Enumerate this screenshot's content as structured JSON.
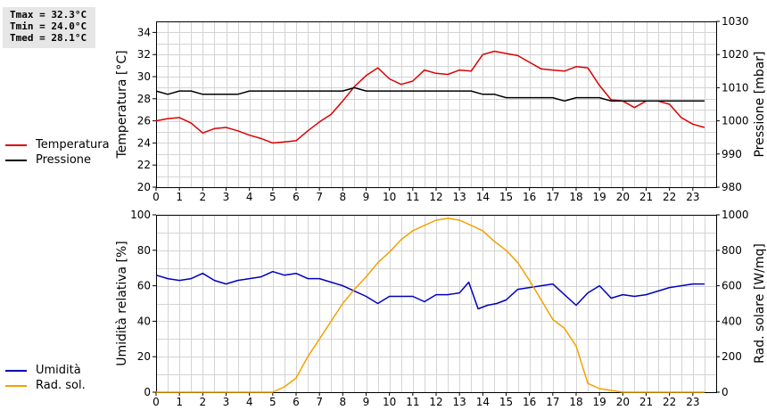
{
  "stats": [
    "Tmax = 32.3°C",
    "Tmin = 24.0°C",
    "Tmed = 28.1°C"
  ],
  "colors": {
    "temperatura": "#dd0000",
    "pressione": "#000000",
    "umidita": "#0000bb",
    "rad_sol": "#f5a000",
    "grid": "#d4d4d4"
  },
  "legend_top": [
    {
      "label": "Temperatura",
      "color": "#dd0000"
    },
    {
      "label": "Pressione",
      "color": "#000000"
    }
  ],
  "legend_bottom": [
    {
      "label": "Umidità",
      "color": "#0000bb"
    },
    {
      "label": "Rad. sol.",
      "color": "#f5a000"
    }
  ],
  "chart_data": [
    {
      "type": "line",
      "xlabel": "",
      "ylabel": "Temperatura [°C]",
      "y2label": "Pressione [mbar]",
      "xlim": [
        0,
        24
      ],
      "ylim": [
        20,
        35
      ],
      "y2lim": [
        980,
        1030
      ],
      "xticks": [
        "0",
        "1",
        "2",
        "3",
        "4",
        "5",
        "6",
        "7",
        "8",
        "9",
        "10",
        "11",
        "12",
        "13",
        "14",
        "15",
        "16",
        "17",
        "18",
        "19",
        "20",
        "21",
        "22",
        "23"
      ],
      "yticks": [
        "20",
        "22",
        "24",
        "26",
        "28",
        "30",
        "32",
        "34"
      ],
      "y2ticks": [
        "980",
        "990",
        "1000",
        "1010",
        "1020",
        "1030"
      ],
      "grid": true,
      "series": [
        {
          "name": "Temperatura",
          "axis": "left",
          "x": [
            0,
            0.5,
            1,
            1.5,
            2,
            2.5,
            3,
            3.5,
            4,
            4.5,
            5,
            5.5,
            6,
            6.5,
            7,
            7.5,
            8,
            8.5,
            9,
            9.5,
            10,
            10.5,
            11,
            11.5,
            12,
            12.5,
            13,
            13.5,
            14,
            14.5,
            15,
            15.5,
            16,
            16.5,
            17,
            17.5,
            18,
            18.5,
            19,
            19.5,
            20,
            20.5,
            21,
            21.5,
            22,
            22.5,
            23,
            23.5
          ],
          "y": [
            26.0,
            26.2,
            26.3,
            25.8,
            24.9,
            25.3,
            25.4,
            25.1,
            24.7,
            24.4,
            24.0,
            24.1,
            24.2,
            25.1,
            25.9,
            26.6,
            27.8,
            29.1,
            30.1,
            30.8,
            29.8,
            29.3,
            29.6,
            30.6,
            30.3,
            30.2,
            30.6,
            30.5,
            32.0,
            32.3,
            32.1,
            31.9,
            31.3,
            30.7,
            30.6,
            30.5,
            30.9,
            30.8,
            29.2,
            27.9,
            27.8,
            27.2,
            27.8,
            27.8,
            27.5,
            26.3,
            25.7,
            25.4
          ]
        },
        {
          "name": "Pressione",
          "axis": "right",
          "x": [
            0,
            0.5,
            1,
            1.5,
            2,
            2.5,
            3,
            3.5,
            4,
            4.5,
            5,
            5.5,
            6,
            6.5,
            7,
            7.5,
            8,
            8.5,
            9,
            9.5,
            10,
            10.5,
            11,
            11.5,
            12,
            12.5,
            13,
            13.5,
            14,
            14.5,
            15,
            15.5,
            16,
            16.5,
            17,
            17.5,
            18,
            18.5,
            19,
            19.5,
            20,
            20.5,
            21,
            21.5,
            22,
            22.5,
            23,
            23.5
          ],
          "y": [
            1009,
            1008,
            1009,
            1009,
            1008,
            1008,
            1008,
            1008,
            1009,
            1009,
            1009,
            1009,
            1009,
            1009,
            1009,
            1009,
            1009,
            1010,
            1009,
            1009,
            1009,
            1009,
            1009,
            1009,
            1009,
            1009,
            1009,
            1009,
            1008,
            1008,
            1007,
            1007,
            1007,
            1007,
            1007,
            1006,
            1007,
            1007,
            1007,
            1006,
            1006,
            1006,
            1006,
            1006,
            1006,
            1006,
            1006,
            1006
          ]
        }
      ]
    },
    {
      "type": "line",
      "xlabel": "",
      "ylabel": "Umidità relativa [%]",
      "y2label": "Rad. solare [W/mq]",
      "xlim": [
        0,
        24
      ],
      "ylim": [
        0,
        100
      ],
      "y2lim": [
        0,
        1000
      ],
      "xticks": [
        "0",
        "1",
        "2",
        "3",
        "4",
        "5",
        "6",
        "7",
        "8",
        "9",
        "10",
        "11",
        "12",
        "13",
        "14",
        "15",
        "16",
        "17",
        "18",
        "19",
        "20",
        "21",
        "22",
        "23"
      ],
      "yticks": [
        "0",
        "20",
        "40",
        "60",
        "80",
        "100"
      ],
      "y2ticks": [
        "0",
        "200",
        "400",
        "600",
        "800",
        "1000"
      ],
      "grid": true,
      "series": [
        {
          "name": "Umidità",
          "axis": "left",
          "x": [
            0,
            0.5,
            1,
            1.5,
            2,
            2.5,
            3,
            3.5,
            4,
            4.5,
            5,
            5.5,
            6,
            6.5,
            7,
            7.5,
            8,
            8.5,
            9,
            9.5,
            10,
            10.5,
            11,
            11.5,
            12,
            12.5,
            13,
            13.4,
            13.8,
            14.2,
            14.6,
            15,
            15.5,
            16,
            16.5,
            17,
            17.5,
            18,
            18.5,
            19,
            19.5,
            20,
            20.5,
            21,
            21.5,
            22,
            22.5,
            23,
            23.5
          ],
          "y": [
            66,
            64,
            63,
            64,
            67,
            63,
            61,
            63,
            64,
            65,
            68,
            66,
            67,
            64,
            64,
            62,
            60,
            57,
            54,
            50,
            54,
            54,
            54,
            51,
            55,
            55,
            56,
            62,
            47,
            49,
            50,
            52,
            58,
            59,
            60,
            61,
            55,
            49,
            56,
            60,
            53,
            55,
            54,
            55,
            57,
            59,
            60,
            61,
            61
          ]
        },
        {
          "name": "Rad. sol.",
          "axis": "right",
          "x": [
            0,
            1,
            2,
            3,
            4,
            5,
            5.5,
            6,
            6.5,
            7,
            7.5,
            8,
            8.5,
            9,
            9.5,
            10,
            10.5,
            11,
            11.5,
            12,
            12.5,
            13,
            13.5,
            14,
            14.5,
            15,
            15.5,
            16,
            16.5,
            17,
            17.5,
            18,
            18.5,
            19,
            19.5,
            20,
            21,
            22,
            23,
            23.5
          ],
          "y": [
            0,
            0,
            0,
            0,
            0,
            0,
            30,
            80,
            200,
            300,
            400,
            500,
            580,
            650,
            730,
            790,
            860,
            910,
            940,
            970,
            980,
            970,
            940,
            910,
            850,
            800,
            730,
            630,
            520,
            410,
            360,
            260,
            50,
            20,
            10,
            0,
            0,
            0,
            0,
            0
          ]
        }
      ]
    }
  ]
}
